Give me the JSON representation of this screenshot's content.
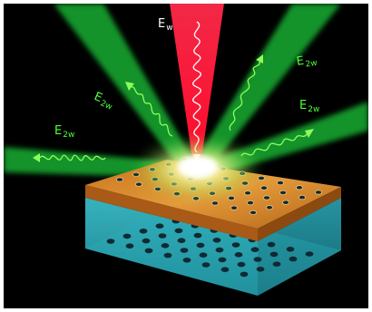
{
  "labels": {
    "fundamental": {
      "main": "E",
      "sub": "w"
    },
    "harmonic_left": {
      "main": "E",
      "sub": "2w"
    },
    "harmonic_upper_left": {
      "main": "E",
      "sub": "2w"
    },
    "harmonic_upper_right": {
      "main": "E",
      "sub": "2w"
    },
    "harmonic_right": {
      "main": "E",
      "sub": "2w"
    }
  },
  "colors": {
    "background": "#000000",
    "fundamental_beam": "#ff1a3a",
    "harmonic_beam": "#2ee82e",
    "gold_film": "#d98a2a",
    "substrate": "#33b6c4",
    "hole_dot": "#0f2a33"
  }
}
